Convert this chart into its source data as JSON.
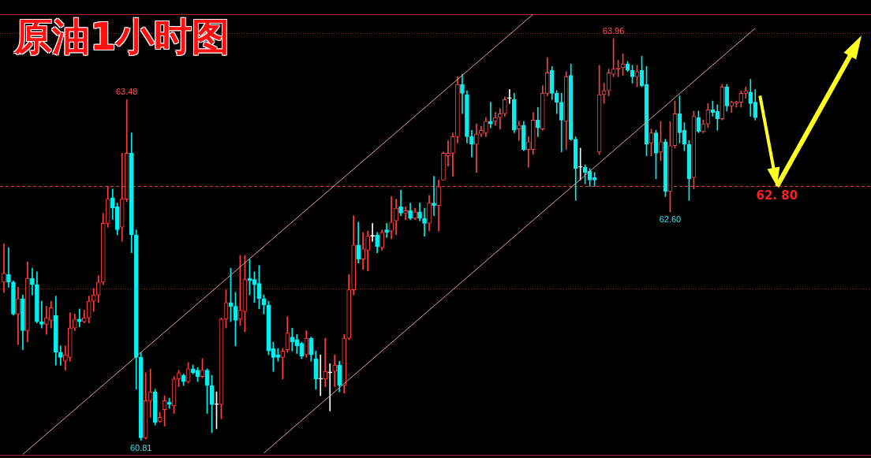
{
  "chart_data": {
    "type": "candlestick",
    "title": "原油1小时图",
    "categories": [
      null,
      null,
      null,
      null,
      null,
      null,
      null,
      null,
      null,
      null,
      null,
      null,
      null,
      null,
      null,
      null,
      null,
      null,
      null,
      null,
      null,
      null,
      null,
      null,
      null,
      null,
      null,
      null,
      null,
      null,
      null,
      null,
      null,
      null,
      null,
      null,
      null,
      null,
      null,
      null,
      null,
      null,
      null,
      null,
      null,
      null,
      null,
      null,
      null,
      null,
      null,
      null,
      null,
      null,
      null,
      null,
      null,
      null,
      null,
      null,
      null,
      null,
      null,
      null,
      null,
      null,
      null,
      null,
      null,
      null,
      null,
      null,
      null,
      null,
      null,
      null,
      null,
      null,
      null,
      null,
      null,
      null,
      null,
      null,
      null,
      null,
      null,
      null,
      null,
      null,
      null,
      null,
      null,
      null,
      null,
      null,
      null,
      null,
      null,
      null,
      null,
      null,
      null,
      null,
      null,
      null,
      null,
      null,
      null,
      null,
      null,
      null,
      null,
      null,
      null,
      null,
      null,
      null,
      null,
      null,
      null,
      null,
      null,
      null,
      null,
      null,
      null,
      null,
      null,
      null,
      null,
      null,
      null,
      null,
      null,
      null,
      null,
      null,
      null,
      null,
      null,
      null,
      null,
      null,
      null,
      null,
      null,
      null,
      null,
      null,
      null,
      null,
      null,
      null,
      null,
      null,
      null,
      null,
      null,
      null
    ],
    "ohlc": [
      [
        62.05,
        62.35,
        61.97,
        62.12
      ],
      [
        62.11,
        62.32,
        62.01,
        62.05
      ],
      [
        62.05,
        62.06,
        61.79,
        61.8
      ],
      [
        61.8,
        62.01,
        61.56,
        61.92
      ],
      [
        61.92,
        61.95,
        61.52,
        61.67
      ],
      [
        61.67,
        62.21,
        61.58,
        62.08
      ],
      [
        62.08,
        62.16,
        61.95,
        62.03
      ],
      [
        62.03,
        62.13,
        61.73,
        61.74
      ],
      [
        61.74,
        61.9,
        61.69,
        61.72
      ],
      [
        61.72,
        61.86,
        61.64,
        61.77
      ],
      [
        61.75,
        61.9,
        61.69,
        61.85
      ],
      [
        61.79,
        61.94,
        61.4,
        61.5
      ],
      [
        61.5,
        61.55,
        61.4,
        61.46
      ],
      [
        61.43,
        61.55,
        61.36,
        61.48
      ],
      [
        61.46,
        61.81,
        61.43,
        61.69
      ],
      [
        61.69,
        61.8,
        61.67,
        61.76
      ],
      [
        61.76,
        61.84,
        61.7,
        61.74
      ],
      [
        61.74,
        61.83,
        61.73,
        61.77
      ],
      [
        61.77,
        61.94,
        61.73,
        61.9
      ],
      [
        61.9,
        62.0,
        61.82,
        61.95
      ],
      [
        61.95,
        62.1,
        61.89,
        62.05
      ],
      [
        62.05,
        62.59,
        62.03,
        62.51
      ],
      [
        62.51,
        62.8,
        62.48,
        62.7
      ],
      [
        62.71,
        62.78,
        62.54,
        62.63
      ],
      [
        62.64,
        62.67,
        62.42,
        62.46
      ],
      [
        62.48,
        63.06,
        62.37,
        62.7
      ],
      [
        62.7,
        63.48,
        62.68,
        63.06
      ],
      [
        63.06,
        63.22,
        62.28,
        62.42
      ],
      [
        62.42,
        62.46,
        61.21,
        61.46
      ],
      [
        61.46,
        61.5,
        60.81,
        60.83
      ],
      [
        60.83,
        61.34,
        60.82,
        61.12
      ],
      [
        61.12,
        61.37,
        60.99,
        61.19
      ],
      [
        61.19,
        61.21,
        60.93,
        60.95
      ],
      [
        60.96,
        61.03,
        60.95,
        60.99
      ],
      [
        61.05,
        61.16,
        60.92,
        61.12
      ],
      [
        61.11,
        61.14,
        61.06,
        61.09
      ],
      [
        61.08,
        61.31,
        61.02,
        61.29
      ],
      [
        61.29,
        61.36,
        61.23,
        61.34
      ],
      [
        61.32,
        61.33,
        61.24,
        61.27
      ],
      [
        61.27,
        61.42,
        61.26,
        61.37
      ],
      [
        61.37,
        61.4,
        61.33,
        61.34
      ],
      [
        61.36,
        61.38,
        61.27,
        61.31
      ],
      [
        61.31,
        61.45,
        61.3,
        61.36
      ],
      [
        61.36,
        61.37,
        61.02,
        61.24
      ],
      [
        61.24,
        61.32,
        60.87,
        61.09
      ],
      [
        61.09,
        61.19,
        60.9,
        61.09
      ],
      [
        61.09,
        61.77,
        60.98,
        61.76
      ],
      [
        61.76,
        61.99,
        61.69,
        61.89
      ],
      [
        61.89,
        62.16,
        61.74,
        61.86
      ],
      [
        61.86,
        61.97,
        61.55,
        61.75
      ],
      [
        61.76,
        62.26,
        61.71,
        61.83
      ],
      [
        61.82,
        62.26,
        61.66,
        62.07
      ],
      [
        62.08,
        62.23,
        61.95,
        62.06
      ],
      [
        62.07,
        62.13,
        61.89,
        62.03
      ],
      [
        62.04,
        62.18,
        61.84,
        61.92
      ],
      [
        61.92,
        61.95,
        61.8,
        61.87
      ],
      [
        61.87,
        61.9,
        61.48,
        61.51
      ],
      [
        61.53,
        61.58,
        61.35,
        61.46
      ],
      [
        61.48,
        61.53,
        61.43,
        61.46
      ],
      [
        61.46,
        61.53,
        61.29,
        61.51
      ],
      [
        61.52,
        61.78,
        61.5,
        61.65
      ],
      [
        61.62,
        61.69,
        61.51,
        61.58
      ],
      [
        61.6,
        61.64,
        61.49,
        61.55
      ],
      [
        61.57,
        61.58,
        61.45,
        61.47
      ],
      [
        61.48,
        61.67,
        61.46,
        61.61
      ],
      [
        61.61,
        61.62,
        61.43,
        61.48
      ],
      [
        61.45,
        61.51,
        61.21,
        61.29
      ],
      [
        61.29,
        61.48,
        61.16,
        61.29
      ],
      [
        61.29,
        61.61,
        61.23,
        61.35
      ],
      [
        61.34,
        61.41,
        61.04,
        61.34
      ],
      [
        61.35,
        61.48,
        61.23,
        61.4
      ],
      [
        61.4,
        61.43,
        61.19,
        61.24
      ],
      [
        61.24,
        61.64,
        61.18,
        61.61
      ],
      [
        61.61,
        62.11,
        61.6,
        61.99
      ],
      [
        61.99,
        62.57,
        61.95,
        62.34
      ],
      [
        62.34,
        62.52,
        62.2,
        62.23
      ],
      [
        62.23,
        62.44,
        62.15,
        62.31
      ],
      [
        62.3,
        62.45,
        62.14,
        62.41
      ],
      [
        62.41,
        62.51,
        62.37,
        62.41
      ],
      [
        62.42,
        62.44,
        62.28,
        62.33
      ],
      [
        62.32,
        62.46,
        62.3,
        62.44
      ],
      [
        62.46,
        62.51,
        62.4,
        62.44
      ],
      [
        62.45,
        62.72,
        62.39,
        62.52
      ],
      [
        62.53,
        62.7,
        62.42,
        62.63
      ],
      [
        62.64,
        62.77,
        62.57,
        62.59
      ],
      [
        62.59,
        62.64,
        62.54,
        62.61
      ],
      [
        62.61,
        62.67,
        62.54,
        62.55
      ],
      [
        62.55,
        62.63,
        62.54,
        62.6
      ],
      [
        62.6,
        62.67,
        62.53,
        62.55
      ],
      [
        62.55,
        62.63,
        62.41,
        62.51
      ],
      [
        62.51,
        62.73,
        62.45,
        62.67
      ],
      [
        62.67,
        62.88,
        62.57,
        62.65
      ],
      [
        62.65,
        62.85,
        62.45,
        62.8
      ],
      [
        62.85,
        63.07,
        62.85,
        63.06
      ],
      [
        63.04,
        63.16,
        62.96,
        63.06
      ],
      [
        63.06,
        63.22,
        62.88,
        63.19
      ],
      [
        63.19,
        63.66,
        63.14,
        63.6
      ],
      [
        63.6,
        63.68,
        63.37,
        63.53
      ],
      [
        63.52,
        63.55,
        63.14,
        63.19
      ],
      [
        63.19,
        63.24,
        63.03,
        63.13
      ],
      [
        63.13,
        63.29,
        62.91,
        63.21
      ],
      [
        63.21,
        63.27,
        63.19,
        63.24
      ],
      [
        63.22,
        63.34,
        63.19,
        63.31
      ],
      [
        63.31,
        63.46,
        63.26,
        63.29
      ],
      [
        63.31,
        63.38,
        63.28,
        63.34
      ],
      [
        63.34,
        63.41,
        63.25,
        63.37
      ],
      [
        63.37,
        63.5,
        63.35,
        63.48
      ],
      [
        63.49,
        63.56,
        63.45,
        63.49
      ],
      [
        63.48,
        63.53,
        63.22,
        63.24
      ],
      [
        63.25,
        63.31,
        63.16,
        63.28
      ],
      [
        63.28,
        63.31,
        63.08,
        63.09
      ],
      [
        63.09,
        63.19,
        62.95,
        63.15
      ],
      [
        63.09,
        63.38,
        63.05,
        63.32
      ],
      [
        63.32,
        63.42,
        63.19,
        63.26
      ],
      [
        63.25,
        63.59,
        63.24,
        63.53
      ],
      [
        63.53,
        63.81,
        63.51,
        63.69
      ],
      [
        63.71,
        63.74,
        63.48,
        63.53
      ],
      [
        63.53,
        63.55,
        63.37,
        63.46
      ],
      [
        63.46,
        63.53,
        63.07,
        63.32
      ],
      [
        63.31,
        63.7,
        63.09,
        63.66
      ],
      [
        63.67,
        63.76,
        63.16,
        63.17
      ],
      [
        63.17,
        63.19,
        62.69,
        62.94
      ],
      [
        62.95,
        63.1,
        62.85,
        62.95
      ],
      [
        62.95,
        62.97,
        62.82,
        62.91
      ],
      [
        62.92,
        62.94,
        62.8,
        62.85
      ],
      [
        62.87,
        62.91,
        62.8,
        62.85
      ],
      [
        63.07,
        63.75,
        63.05,
        63.52
      ],
      [
        63.52,
        63.61,
        63.45,
        63.55
      ],
      [
        63.55,
        63.72,
        63.51,
        63.69
      ],
      [
        63.68,
        63.96,
        63.66,
        63.72
      ],
      [
        63.72,
        63.79,
        63.66,
        63.73
      ],
      [
        63.73,
        63.84,
        63.67,
        63.76
      ],
      [
        63.76,
        63.78,
        63.7,
        63.71
      ],
      [
        63.71,
        63.75,
        63.61,
        63.66
      ],
      [
        63.66,
        63.75,
        63.58,
        63.7
      ],
      [
        63.71,
        63.82,
        63.58,
        63.59
      ],
      [
        63.6,
        63.74,
        63.04,
        63.13
      ],
      [
        63.14,
        63.25,
        63.04,
        63.22
      ],
      [
        63.22,
        63.24,
        62.86,
        63.06
      ],
      [
        63.07,
        63.31,
        63.0,
        63.15
      ],
      [
        63.15,
        63.17,
        62.72,
        62.76
      ],
      [
        62.76,
        63.31,
        62.6,
        63.12
      ],
      [
        63.12,
        63.47,
        63.1,
        63.37
      ],
      [
        63.37,
        63.51,
        63.14,
        63.22
      ],
      [
        63.24,
        63.3,
        63.08,
        63.13
      ],
      [
        63.13,
        63.16,
        62.69,
        62.86
      ],
      [
        62.87,
        63.39,
        62.78,
        63.35
      ],
      [
        63.34,
        63.39,
        63.22,
        63.23
      ],
      [
        63.23,
        63.32,
        63.22,
        63.29
      ],
      [
        63.29,
        63.45,
        63.26,
        63.4
      ],
      [
        63.4,
        63.47,
        63.35,
        63.38
      ],
      [
        63.39,
        63.44,
        63.24,
        63.33
      ],
      [
        63.33,
        63.6,
        63.32,
        63.58
      ],
      [
        63.58,
        63.6,
        63.39,
        63.43
      ],
      [
        63.43,
        63.47,
        63.38,
        63.46
      ],
      [
        63.45,
        63.47,
        63.42,
        63.46
      ],
      [
        63.46,
        63.55,
        63.42,
        63.53
      ],
      [
        63.53,
        63.58,
        63.49,
        63.55
      ],
      [
        63.54,
        63.64,
        63.35,
        63.45
      ],
      [
        63.46,
        63.56,
        63.32,
        63.34
      ]
    ],
    "series": [
      {
        "type": "line",
        "color": "#e8a090",
        "values": [
          null,
          null,
          null,
          null,
          60.7,
          null,
          null,
          null,
          null,
          null,
          null,
          null,
          null,
          null,
          null,
          null,
          null,
          null,
          null,
          null,
          null,
          null,
          null,
          null,
          null,
          null,
          null,
          null,
          null,
          null,
          null,
          null,
          null,
          null,
          null,
          null,
          null,
          null,
          null,
          null,
          null,
          null,
          null,
          null,
          null,
          null,
          null,
          null,
          null,
          null,
          null,
          null,
          null,
          null,
          null,
          null,
          null,
          null,
          null,
          null,
          null,
          null,
          null,
          null,
          null,
          null,
          null,
          null,
          null,
          null,
          null,
          null,
          null,
          null,
          null,
          null,
          null,
          null,
          null,
          null,
          null,
          null,
          null,
          null,
          null,
          null,
          null,
          null,
          null,
          null,
          null,
          null,
          null,
          null,
          null,
          null,
          null,
          null,
          null,
          null,
          null,
          null,
          null,
          null,
          null,
          null,
          null,
          null,
          null,
          null,
          null,
          null,
          64.15,
          null,
          null,
          null,
          null,
          null,
          null,
          null,
          null,
          null,
          null,
          null,
          null,
          null,
          null,
          null,
          null,
          null,
          null,
          null,
          null,
          null,
          null,
          null,
          null,
          null,
          null,
          null,
          null,
          null,
          null,
          null,
          null,
          null,
          null,
          null,
          null,
          null,
          null,
          null,
          null,
          null,
          null,
          null,
          null,
          null,
          null,
          null
        ]
      },
      {
        "type": "line",
        "color": "#e8a090",
        "values": [
          null,
          null,
          null,
          null,
          null,
          null,
          null,
          null,
          null,
          null,
          null,
          null,
          null,
          null,
          null,
          null,
          null,
          null,
          null,
          null,
          null,
          null,
          null,
          null,
          null,
          null,
          null,
          null,
          null,
          null,
          null,
          null,
          null,
          null,
          null,
          null,
          null,
          null,
          null,
          null,
          null,
          null,
          null,
          null,
          null,
          null,
          null,
          null,
          null,
          null,
          null,
          null,
          null,
          null,
          null,
          60.71,
          null,
          null,
          null,
          null,
          null,
          null,
          null,
          null,
          null,
          null,
          null,
          null,
          null,
          null,
          null,
          null,
          null,
          null,
          null,
          null,
          null,
          null,
          null,
          null,
          null,
          null,
          null,
          null,
          null,
          null,
          null,
          null,
          null,
          null,
          null,
          null,
          null,
          null,
          null,
          null,
          null,
          null,
          null,
          null,
          null,
          null,
          null,
          null,
          null,
          null,
          null,
          null,
          null,
          null,
          null,
          null,
          null,
          null,
          null,
          null,
          null,
          null,
          null,
          null,
          null,
          null,
          null,
          null,
          null,
          null,
          null,
          null,
          null,
          null,
          null,
          null,
          null,
          null,
          null,
          null,
          null,
          null,
          null,
          null,
          null,
          null,
          null,
          null,
          null,
          null,
          null,
          null,
          null,
          null,
          null,
          null,
          null,
          null,
          null,
          null,
          null,
          null,
          null,
          64.04
        ]
      }
    ],
    "ylim": [
      60.69,
      64.15
    ],
    "ref_lines": [
      {
        "axis": "y",
        "value": 62.8,
        "color": "#d04040",
        "line_style": "dashed"
      },
      {
        "axis": "y",
        "value": 64.0,
        "color": "#a02020",
        "line_style": "dotted"
      },
      {
        "axis": "y",
        "value": 62.0,
        "color": "#a02020",
        "line_style": "dotted"
      }
    ],
    "annotations": [
      {
        "text": "63.48",
        "y": 63.48
      },
      {
        "text": "60.81",
        "y": 60.81
      },
      {
        "text": "63.96",
        "y": 63.96
      },
      {
        "text": "62.60",
        "y": 62.6
      },
      {
        "text": "62. 80",
        "y": 62.8
      }
    ]
  }
}
